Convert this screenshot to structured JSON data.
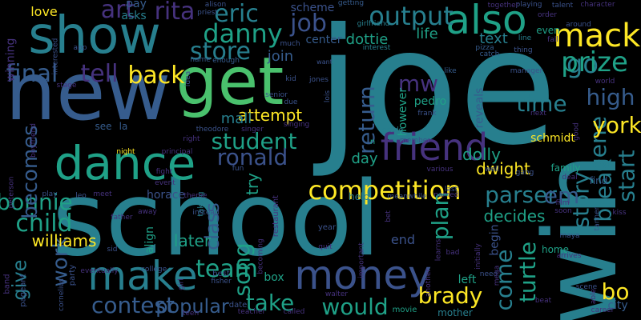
{
  "background": "#000000",
  "palette": {
    "purple": "#46327e",
    "blue": "#365c8d",
    "teal": "#277f8e",
    "cyan": "#1fa187",
    "green": "#4ac16d",
    "lime": "#a0da39",
    "yellow": "#fde725",
    "indigo": "#3b528b"
  },
  "words": [
    {
      "text": "joe"
    },
    {
      "text": "school"
    },
    {
      "text": "new"
    },
    {
      "text": "show"
    },
    {
      "text": "get"
    },
    {
      "text": "win"
    },
    {
      "text": "dance"
    },
    {
      "text": "friend"
    },
    {
      "text": "also"
    },
    {
      "text": "money"
    },
    {
      "text": "make"
    },
    {
      "text": "competition"
    },
    {
      "text": "mack"
    },
    {
      "text": "go"
    },
    {
      "text": "eric"
    },
    {
      "text": "job"
    },
    {
      "text": "output"
    },
    {
      "text": "prize"
    },
    {
      "text": "danny"
    },
    {
      "text": "store"
    },
    {
      "text": "art"
    },
    {
      "text": "rita"
    },
    {
      "text": "tell"
    },
    {
      "text": "final"
    },
    {
      "text": "back"
    },
    {
      "text": "mw"
    },
    {
      "text": "return"
    },
    {
      "text": "time"
    },
    {
      "text": "high"
    },
    {
      "text": "student"
    },
    {
      "text": "ronald"
    },
    {
      "text": "parser"
    },
    {
      "text": "gene"
    },
    {
      "text": "start"
    },
    {
      "text": "break"
    },
    {
      "text": "story"
    },
    {
      "text": "em"
    },
    {
      "text": "york"
    },
    {
      "text": "child"
    },
    {
      "text": "bonnie"
    },
    {
      "text": "becomes"
    },
    {
      "text": "work"
    },
    {
      "text": "give"
    },
    {
      "text": "contest"
    },
    {
      "text": "team"
    },
    {
      "text": "song"
    },
    {
      "text": "take"
    },
    {
      "text": "would"
    },
    {
      "text": "brady"
    },
    {
      "text": "plan"
    },
    {
      "text": "come"
    },
    {
      "text": "turtle"
    },
    {
      "text": "bo"
    },
    {
      "text": "popular"
    },
    {
      "text": "class"
    },
    {
      "text": "later"
    },
    {
      "text": "williams"
    },
    {
      "text": "dolly"
    },
    {
      "text": "decides"
    },
    {
      "text": "dwight"
    },
    {
      "text": "try"
    },
    {
      "text": "attempt"
    },
    {
      "text": "mall"
    },
    {
      "text": "day"
    },
    {
      "text": "join"
    },
    {
      "text": "dottie"
    },
    {
      "text": "life"
    },
    {
      "text": "text"
    },
    {
      "text": "center"
    },
    {
      "text": "scheme"
    },
    {
      "text": "love"
    },
    {
      "text": "pay"
    },
    {
      "text": "asks"
    },
    {
      "text": "winning"
    },
    {
      "text": "schmidt"
    },
    {
      "text": "pedro"
    },
    {
      "text": "however"
    },
    {
      "text": "reveals"
    },
    {
      "text": "box"
    },
    {
      "text": "left"
    },
    {
      "text": "city"
    },
    {
      "text": "end"
    },
    {
      "text": "begin"
    },
    {
      "text": "home"
    },
    {
      "text": "find"
    },
    {
      "text": "family"
    },
    {
      "text": "horace"
    },
    {
      "text": "align"
    },
    {
      "text": "see"
    },
    {
      "text": "la"
    },
    {
      "text": "help"
    },
    {
      "text": "even"
    },
    {
      "text": "mother"
    },
    {
      "text": "movie"
    },
    {
      "text": "year"
    },
    {
      "text": "best"
    },
    {
      "text": "party"
    },
    {
      "text": "band"
    },
    {
      "text": "pageant"
    },
    {
      "text": "date"
    },
    {
      "text": "taking"
    },
    {
      "text": "restaurant"
    },
    {
      "text": "n"
    },
    {
      "text": "kid"
    },
    {
      "text": "jones"
    },
    {
      "text": "thing"
    },
    {
      "text": "world"
    },
    {
      "text": "sid"
    },
    {
      "text": "girl"
    },
    {
      "text": "night"
    },
    {
      "text": "gang"
    },
    {
      "text": "grade"
    },
    {
      "text": "priest"
    },
    {
      "text": "alison"
    },
    {
      "text": "girlfriend"
    },
    {
      "text": "interest"
    },
    {
      "text": "pizza"
    },
    {
      "text": "catch"
    },
    {
      "text": "line"
    },
    {
      "text": "fall"
    },
    {
      "text": "around"
    },
    {
      "text": "character"
    },
    {
      "text": "talent"
    },
    {
      "text": "order"
    },
    {
      "text": "playing"
    },
    {
      "text": "together"
    },
    {
      "text": "getting"
    },
    {
      "text": "want"
    },
    {
      "text": "much"
    },
    {
      "text": "name"
    },
    {
      "text": "enough"
    },
    {
      "text": "app"
    },
    {
      "text": "stage"
    },
    {
      "text": "boyfriend"
    },
    {
      "text": "interested"
    },
    {
      "text": "principal"
    },
    {
      "text": "right"
    },
    {
      "text": "theodore"
    },
    {
      "text": "singer"
    },
    {
      "text": "singing"
    },
    {
      "text": "frank"
    },
    {
      "text": "next"
    },
    {
      "text": "manager"
    },
    {
      "text": "like"
    },
    {
      "text": "senior"
    },
    {
      "text": "due"
    },
    {
      "text": "lois"
    },
    {
      "text": "member"
    },
    {
      "text": "fight"
    },
    {
      "text": "event"
    },
    {
      "text": "theme"
    },
    {
      "text": "fun"
    },
    {
      "text": "various"
    },
    {
      "text": "well"
    },
    {
      "text": "meanwhile"
    },
    {
      "text": "named"
    },
    {
      "text": "last"
    },
    {
      "text": "meet"
    },
    {
      "text": "father"
    },
    {
      "text": "away"
    },
    {
      "text": "instead"
    },
    {
      "text": "film"
    },
    {
      "text": "soon"
    },
    {
      "text": "deal"
    },
    {
      "text": "maya"
    },
    {
      "text": "tanner"
    },
    {
      "text": "arrives"
    },
    {
      "text": "kiss"
    },
    {
      "text": "scene"
    },
    {
      "text": "career"
    },
    {
      "text": "able"
    },
    {
      "text": "beat"
    },
    {
      "text": "need"
    },
    {
      "text": "walter"
    },
    {
      "text": "teacher"
    },
    {
      "text": "called"
    },
    {
      "text": "fisher"
    },
    {
      "text": "college"
    },
    {
      "text": "eventually"
    },
    {
      "text": "cornelius"
    },
    {
      "text": "teen"
    },
    {
      "text": "becoming"
    },
    {
      "text": "quit"
    },
    {
      "text": "important"
    },
    {
      "text": "another"
    },
    {
      "text": "learns"
    },
    {
      "text": "bad"
    },
    {
      "text": "initially"
    },
    {
      "text": "peterson"
    },
    {
      "text": "play"
    },
    {
      "text": "leo"
    },
    {
      "text": "idea"
    },
    {
      "text": "bet"
    },
    {
      "text": "mega"
    },
    {
      "text": "good"
    }
  ]
}
